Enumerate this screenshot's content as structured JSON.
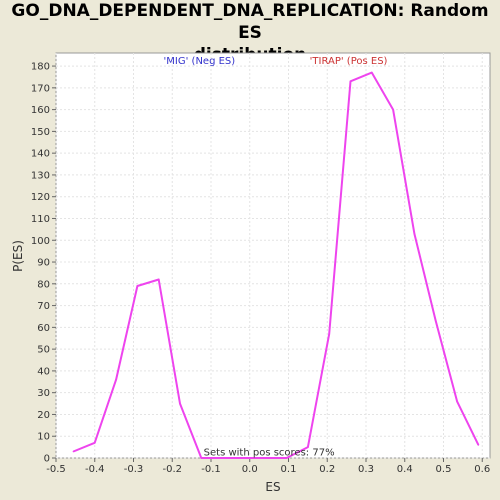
{
  "chart_data": {
    "type": "line",
    "title_lines": [
      "GO_DNA_DEPENDENT_DNA_REPLICATION: Random ES",
      "distribution"
    ],
    "xlabel": "ES",
    "ylabel": "P(ES)",
    "xlim": [
      -0.5,
      0.62
    ],
    "ylim": [
      0,
      186
    ],
    "x_ticks": [
      -0.5,
      -0.4,
      -0.3,
      -0.2,
      -0.1,
      0.0,
      0.1,
      0.2,
      0.3,
      0.4,
      0.5,
      0.6
    ],
    "x_tick_labels": [
      "-0.5",
      "-0.4",
      "-0.3",
      "-0.2",
      "-0.1",
      "0.0",
      "0.1",
      "0.2",
      "0.3",
      "0.4",
      "0.5",
      "0.6"
    ],
    "y_ticks": [
      0,
      10,
      20,
      30,
      40,
      50,
      60,
      70,
      80,
      90,
      100,
      110,
      120,
      130,
      140,
      150,
      160,
      170,
      180
    ],
    "y_tick_labels": [
      "0",
      "10",
      "20",
      "30",
      "40",
      "50",
      "60",
      "70",
      "80",
      "90",
      "100",
      "110",
      "120",
      "130",
      "140",
      "150",
      "160",
      "170",
      "180"
    ],
    "grid": true,
    "series_color": "#ee44ee",
    "series": [
      {
        "x": [
          -0.455,
          -0.4,
          -0.345,
          -0.29,
          -0.235,
          -0.18,
          -0.125,
          -0.07,
          -0.015,
          0.04,
          0.095,
          0.15,
          0.205,
          0.26,
          0.315,
          0.37,
          0.425,
          0.48,
          0.535,
          0.59
        ],
        "values": [
          3,
          7,
          36,
          79,
          82,
          25,
          0,
          0,
          0,
          0,
          0,
          5,
          57,
          173,
          177,
          160,
          103,
          63,
          26,
          6
        ]
      }
    ],
    "annotations": [
      {
        "text": "'MIG' (Neg ES)",
        "color": "#3333cc",
        "x": -0.13,
        "y": 181
      },
      {
        "text": "'TIRAP' (Pos ES)",
        "color": "#cc3333",
        "x": 0.255,
        "y": 181
      },
      {
        "text": "Sets with pos scores: 77%",
        "color": "#333333",
        "x": 0.05,
        "y": 1.2
      }
    ]
  }
}
